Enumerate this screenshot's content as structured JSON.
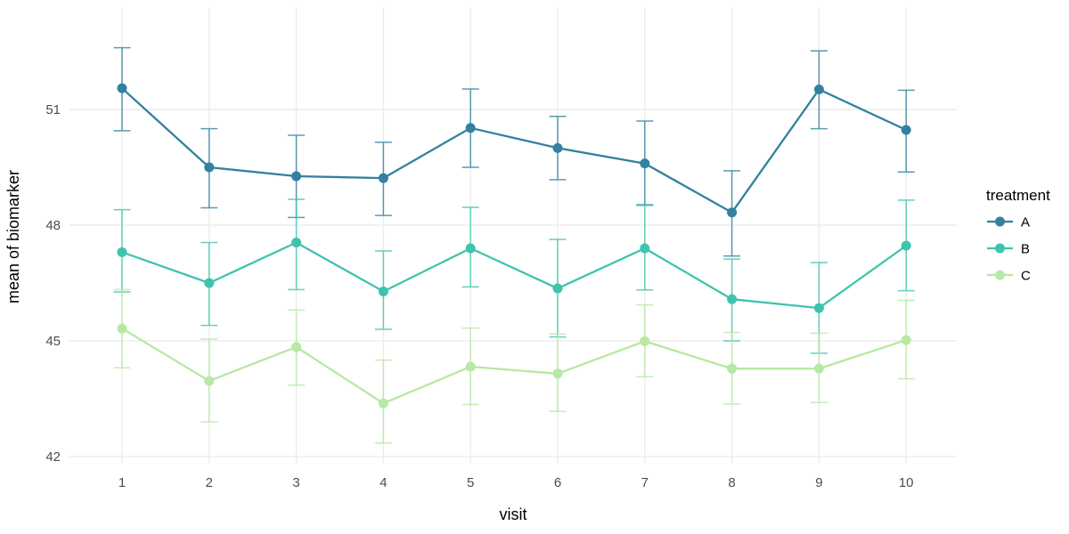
{
  "figure": {
    "background": "#ffffff",
    "gridline_color": "#ececec",
    "tick_label_color": "#4d4d4d",
    "axis_title_color": "#000000"
  },
  "chart_data": {
    "type": "line",
    "title": "",
    "x_title": "visit",
    "y_title": "mean of biomarker",
    "x": [
      1,
      2,
      3,
      4,
      5,
      6,
      7,
      8,
      9,
      10
    ],
    "x_tick_labels": [
      "1",
      "2",
      "3",
      "4",
      "5",
      "6",
      "7",
      "8",
      "9",
      "10"
    ],
    "y_ticks": [
      42,
      45,
      48,
      51
    ],
    "y_tick_labels": [
      "42",
      "45",
      "48",
      "51"
    ],
    "ylim": [
      41.8,
      53.6
    ],
    "grid": "major-only",
    "error_bars": true,
    "legend": {
      "title": "treatment",
      "position": "right"
    },
    "series": [
      {
        "name": "A",
        "color": "#33819f",
        "values": [
          51.55,
          49.5,
          49.27,
          49.22,
          50.52,
          50.0,
          49.6,
          48.33,
          51.52,
          50.47
        ],
        "lower": [
          50.45,
          48.45,
          48.2,
          48.25,
          49.5,
          49.18,
          48.53,
          47.2,
          50.5,
          49.38
        ],
        "upper": [
          52.6,
          50.5,
          50.33,
          50.15,
          51.53,
          50.82,
          50.7,
          49.41,
          52.52,
          51.5
        ]
      },
      {
        "name": "B",
        "color": "#3fc3ad",
        "values": [
          47.3,
          46.5,
          47.55,
          46.28,
          47.4,
          46.36,
          47.4,
          46.08,
          45.85,
          47.47
        ],
        "lower": [
          46.27,
          45.4,
          46.33,
          45.3,
          46.4,
          45.1,
          46.32,
          45.0,
          44.68,
          46.3
        ],
        "upper": [
          48.4,
          47.55,
          48.67,
          47.33,
          48.46,
          47.63,
          48.51,
          47.12,
          47.03,
          48.65
        ]
      },
      {
        "name": "C",
        "color": "#b7e8a5",
        "values": [
          45.32,
          43.96,
          44.84,
          43.38,
          44.33,
          44.15,
          44.99,
          44.28,
          44.28,
          45.02
        ],
        "lower": [
          44.3,
          42.9,
          43.85,
          42.35,
          43.35,
          43.17,
          44.07,
          43.36,
          43.4,
          44.02
        ],
        "upper": [
          46.33,
          45.05,
          45.8,
          44.5,
          45.33,
          45.18,
          45.93,
          45.22,
          45.2,
          46.05
        ]
      }
    ]
  }
}
